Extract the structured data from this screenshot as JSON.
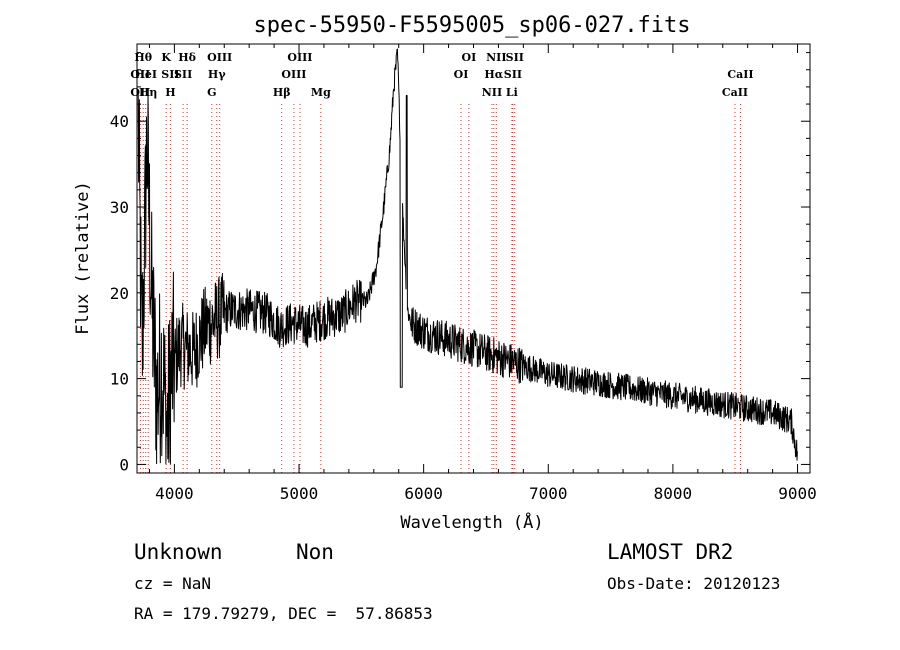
{
  "chart_data": {
    "type": "line",
    "title": "spec-55950-F5595005_sp06-027.fits",
    "xlabel": "Wavelength (Å)",
    "ylabel": "Flux (relative)",
    "xlim": [
      3700,
      9100
    ],
    "ylim": [
      -1,
      49
    ],
    "xticks": [
      {
        "value": 4000,
        "label": "4000"
      },
      {
        "value": 5000,
        "label": "5000"
      },
      {
        "value": 6000,
        "label": "6000"
      },
      {
        "value": 7000,
        "label": "7000"
      },
      {
        "value": 8000,
        "label": "8000"
      },
      {
        "value": 9000,
        "label": "9000"
      }
    ],
    "yticks": [
      {
        "value": 0,
        "label": "0"
      },
      {
        "value": 10,
        "label": "10"
      },
      {
        "value": 20,
        "label": "20"
      },
      {
        "value": 30,
        "label": "30"
      },
      {
        "value": 40,
        "label": "40"
      }
    ],
    "line_color": "#e0302a",
    "lines": [
      {
        "wl": 3727,
        "labels": [
          "OII",
          "OII"
        ],
        "rows": [
          1,
          2
        ]
      },
      {
        "wl": 3750,
        "labels": [
          "Hθ"
        ],
        "rows": [
          0
        ]
      },
      {
        "wl": 3770,
        "labels": [
          "HeI"
        ],
        "rows": [
          1
        ]
      },
      {
        "wl": 3790,
        "labels": [
          "Hη"
        ],
        "rows": [
          2
        ]
      },
      {
        "wl": 3934,
        "labels": [
          "K"
        ],
        "rows": [
          0
        ]
      },
      {
        "wl": 3968,
        "labels": [
          "SII",
          "H"
        ],
        "rows": [
          1,
          2
        ]
      },
      {
        "wl": 4102,
        "labels": [
          "Hδ"
        ],
        "rows": [
          0
        ]
      },
      {
        "wl": 4070,
        "labels": [
          "SII"
        ],
        "rows": [
          1
        ]
      },
      {
        "wl": 4300,
        "labels": [
          "G"
        ],
        "rows": [
          2
        ]
      },
      {
        "wl": 4340,
        "labels": [
          "Hγ"
        ],
        "rows": [
          1
        ]
      },
      {
        "wl": 4363,
        "labels": [
          "OIII"
        ],
        "rows": [
          0
        ]
      },
      {
        "wl": 4861,
        "labels": [
          "Hβ"
        ],
        "rows": [
          2
        ]
      },
      {
        "wl": 4959,
        "labels": [
          "OIII"
        ],
        "rows": [
          1
        ]
      },
      {
        "wl": 5007,
        "labels": [
          "OIII"
        ],
        "rows": [
          0
        ]
      },
      {
        "wl": 5175,
        "labels": [
          "Mg"
        ],
        "rows": [
          2
        ]
      },
      {
        "wl": 6300,
        "labels": [
          "OI"
        ],
        "rows": [
          1
        ]
      },
      {
        "wl": 6363,
        "labels": [
          "OI"
        ],
        "rows": [
          0
        ]
      },
      {
        "wl": 6548,
        "labels": [
          "NII"
        ],
        "rows": [
          2
        ]
      },
      {
        "wl": 6563,
        "labels": [
          "Hα"
        ],
        "rows": [
          1
        ]
      },
      {
        "wl": 6583,
        "labels": [
          "NII"
        ],
        "rows": [
          0
        ]
      },
      {
        "wl": 6708,
        "labels": [
          "Li"
        ],
        "rows": [
          2
        ]
      },
      {
        "wl": 6716,
        "labels": [
          "SII"
        ],
        "rows": [
          1
        ]
      },
      {
        "wl": 6731,
        "labels": [
          "SII"
        ],
        "rows": [
          0
        ]
      },
      {
        "wl": 8498,
        "labels": [
          "CaII"
        ],
        "rows": [
          2
        ]
      },
      {
        "wl": 8542,
        "labels": [
          "CaII"
        ],
        "rows": [
          1
        ]
      }
    ],
    "spectrum_anchors": [
      [
        3710,
        40
      ],
      [
        3740,
        12
      ],
      [
        3780,
        38
      ],
      [
        3820,
        18
      ],
      [
        3860,
        8
      ],
      [
        3900,
        12
      ],
      [
        3940,
        4
      ],
      [
        3980,
        11
      ],
      [
        4050,
        14
      ],
      [
        4150,
        13
      ],
      [
        4250,
        16
      ],
      [
        4350,
        17
      ],
      [
        4450,
        18
      ],
      [
        4600,
        18
      ],
      [
        4750,
        17.5
      ],
      [
        4850,
        16
      ],
      [
        4950,
        16.5
      ],
      [
        5050,
        16
      ],
      [
        5200,
        17
      ],
      [
        5350,
        17.5
      ],
      [
        5450,
        19
      ],
      [
        5550,
        19
      ],
      [
        5620,
        23
      ],
      [
        5680,
        30
      ],
      [
        5730,
        37
      ],
      [
        5760,
        44
      ],
      [
        5790,
        48
      ],
      [
        5830,
        30
      ],
      [
        5870,
        18
      ],
      [
        5900,
        16.5
      ],
      [
        6000,
        15.5
      ],
      [
        6100,
        15
      ],
      [
        6200,
        14.5
      ],
      [
        6300,
        14
      ],
      [
        6400,
        13.5
      ],
      [
        6500,
        13
      ],
      [
        6600,
        12.5
      ],
      [
        6700,
        12
      ],
      [
        6800,
        11.5
      ],
      [
        6900,
        11
      ],
      [
        7000,
        10.5
      ],
      [
        7200,
        10
      ],
      [
        7400,
        9.5
      ],
      [
        7600,
        9
      ],
      [
        7800,
        8.5
      ],
      [
        8000,
        8
      ],
      [
        8200,
        7.5
      ],
      [
        8400,
        7
      ],
      [
        8600,
        6.5
      ],
      [
        8800,
        6
      ],
      [
        8950,
        5
      ],
      [
        9000,
        1
      ]
    ]
  },
  "footer": {
    "object_class": "Unknown",
    "subclass": "Non",
    "survey": "LAMOST DR2",
    "cz": "cz = NaN",
    "obs_date": "Obs-Date: 20120123",
    "radec": "RA = 179.79279, DEC =  57.86853"
  }
}
